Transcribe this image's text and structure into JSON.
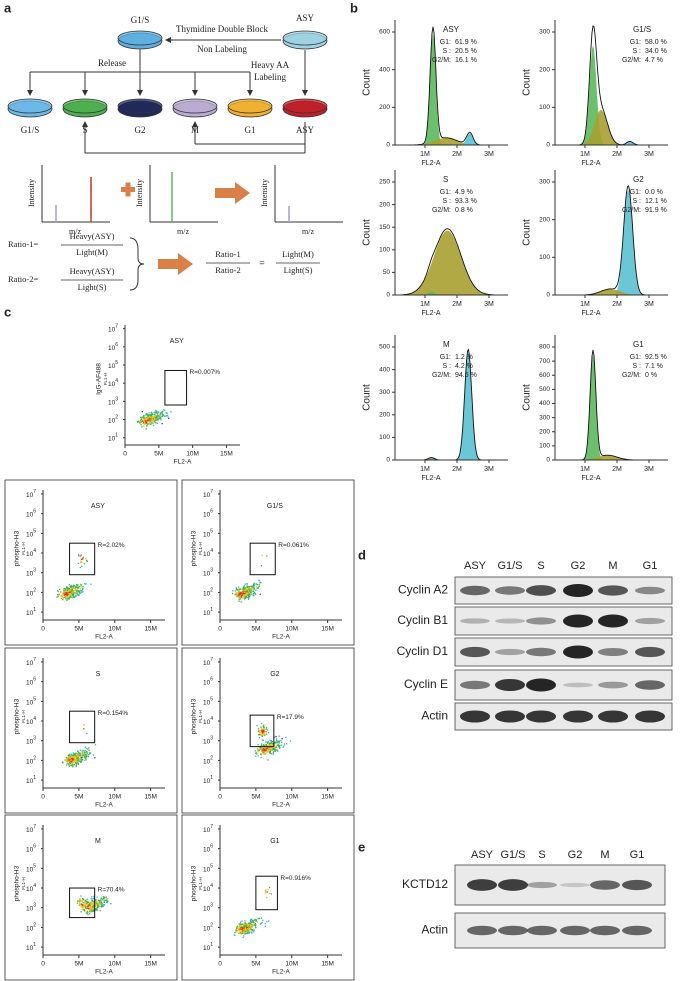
{
  "panel_a": {
    "label": "a",
    "top_dishes": [
      "G1/S",
      "ASY"
    ],
    "block": "Thymidine  Double Block",
    "non_labeling": "Non Labeling",
    "release": "Release",
    "heavy": [
      "Heavy AA",
      "Labeling"
    ],
    "dishes": [
      "G1/S",
      "S",
      "G2",
      "M",
      "G1",
      "ASY"
    ],
    "y_label": "Intensity",
    "x_label": "m/z",
    "ratios": [
      {
        "name": "Ratio-1=",
        "num": "Heavy(ASY)",
        "den": "Light(M)"
      },
      {
        "name": "Ratio-2=",
        "num": "Heavy(ASY)",
        "den": "Light(S)"
      }
    ],
    "result": {
      "left_num": "Ratio-1",
      "left_den": "Ratio-2",
      "eq": "=",
      "right_num": "Light(M)",
      "right_den": "Light(S)"
    }
  },
  "panel_b": {
    "label": "b",
    "y_label": "Count",
    "x_label": "FL2-A",
    "x_ticks": [
      "1M",
      "2M",
      "3M"
    ],
    "stat_names": [
      "G1:",
      "S :",
      "G2/M:"
    ],
    "plots": [
      {
        "title": "ASY",
        "stats": [
          "61.9 %",
          "20.5 %",
          "16.1 %"
        ],
        "y_ticks": [
          "0",
          "200",
          "400",
          "600"
        ]
      },
      {
        "title": "G1/S",
        "stats": [
          "58.0 %",
          "34.0 %",
          "4.7 %"
        ],
        "y_ticks": [
          "0",
          "100",
          "200",
          "300"
        ]
      },
      {
        "title": "S",
        "stats": [
          "4.9 %",
          "93.3 %",
          "0.8 %"
        ],
        "y_ticks": [
          "0",
          "50",
          "100",
          "150",
          "200",
          "250"
        ]
      },
      {
        "title": "G2",
        "stats": [
          "0.0 %",
          "12.1 %",
          "91.9 %"
        ],
        "y_ticks": [
          "0",
          "100",
          "200",
          "300"
        ]
      },
      {
        "title": "M",
        "stats": [
          "1.2 %",
          "4.2 %",
          "94.6 %"
        ],
        "y_ticks": [
          "0",
          "100",
          "200",
          "300",
          "400",
          "500"
        ]
      },
      {
        "title": "G1",
        "stats": [
          "92.5 %",
          "7.1 %",
          "0 %"
        ],
        "y_ticks": [
          "0",
          "100",
          "200",
          "300",
          "400",
          "500",
          "600",
          "700",
          "800"
        ]
      }
    ]
  },
  "panel_c": {
    "label": "c",
    "x_label": "FL2-A",
    "x_ticks": [
      "0",
      "5M",
      "10M",
      "15M"
    ],
    "y_base": "10",
    "y_exps": [
      "1",
      "2",
      "3",
      "4",
      "5",
      "6",
      "7"
    ],
    "y_sub": "FL1-H",
    "plots": [
      {
        "title": "ASY",
        "gate": "R=0.007%",
        "y_label": "IgG-AF488"
      },
      {
        "title": "ASY",
        "gate": "R=2.02%",
        "y_label": "phospho-H3"
      },
      {
        "title": "G1/S",
        "gate": "R=0.061%",
        "y_label": "phospho-H3"
      },
      {
        "title": "S",
        "gate": "R=0.154%",
        "y_label": "phospho-H3"
      },
      {
        "title": "G2",
        "gate": "R=17.9%",
        "y_label": "phospho-H3"
      },
      {
        "title": "M",
        "gate": "R=70.4%",
        "y_label": "phospho-H3"
      },
      {
        "title": "G1",
        "gate": "R=0.916%",
        "y_label": "phospho-H3"
      }
    ]
  },
  "panel_d": {
    "label": "d",
    "lanes": [
      "ASY",
      "G1/S",
      "S",
      "G2",
      "M",
      "G1"
    ],
    "rows": [
      "Cyclin A2",
      "Cyclin B1",
      "Cyclin D1",
      "Cyclin E",
      "Actin"
    ]
  },
  "panel_e": {
    "label": "e",
    "lanes": [
      "ASY",
      "G1/S",
      "S",
      "G2",
      "M",
      "G1"
    ],
    "rows": [
      "KCTD12",
      "Actin"
    ]
  }
}
